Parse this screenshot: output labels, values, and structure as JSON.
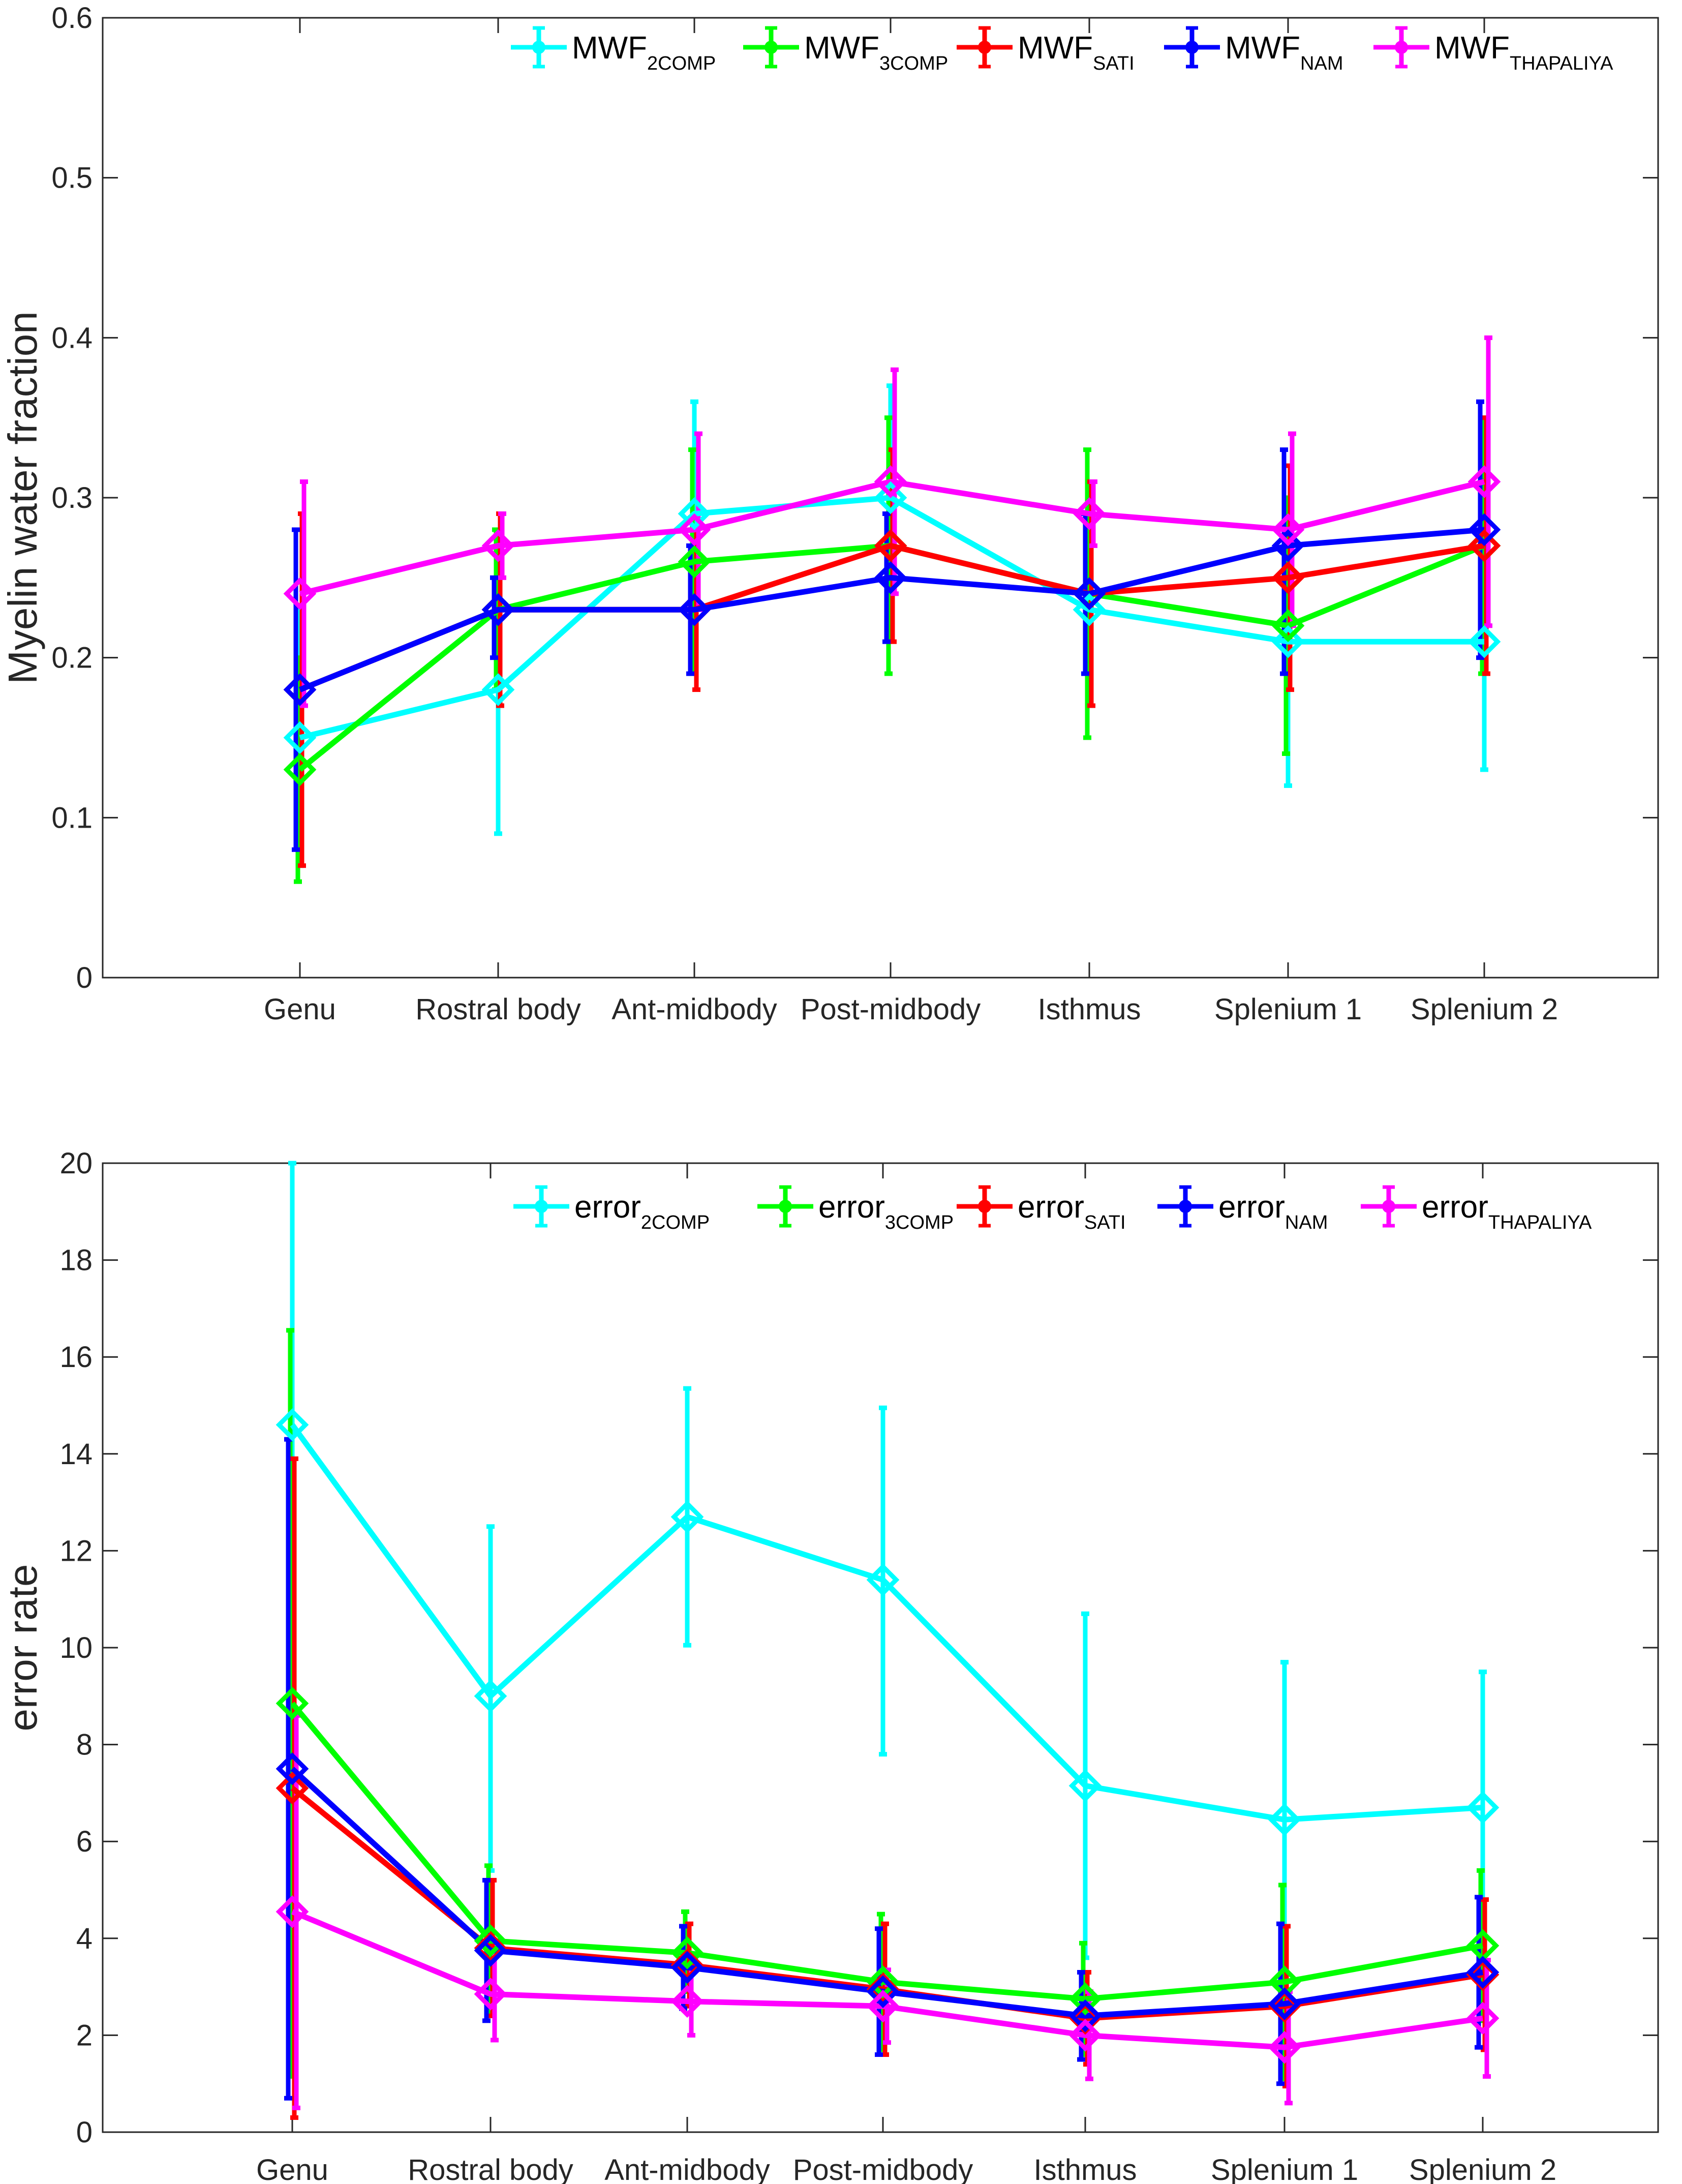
{
  "chart_data": [
    {
      "type": "line",
      "title": "",
      "xlabel": "",
      "ylabel": "Myelin water fraction",
      "ylim": [
        0,
        0.6
      ],
      "yticks": [
        0,
        0.1,
        0.2,
        0.3,
        0.4,
        0.5,
        0.6
      ],
      "ytick_labels": [
        "0",
        "0.1",
        "0.2",
        "0.3",
        "0.4",
        "0.5",
        "0.6"
      ],
      "grid": false,
      "legend_position": "top-right",
      "categories": [
        "Genu",
        "Rostral body",
        "Ant-midbody",
        "Post-midbody",
        "Isthmus",
        "Splenium 1",
        "Splenium 2"
      ],
      "series": [
        {
          "name": "MWF",
          "sub": "2COMP",
          "color": "#00ffff",
          "values": [
            0.15,
            0.18,
            0.29,
            0.3,
            0.23,
            0.21,
            0.21
          ],
          "lower": [
            0.07,
            0.09,
            0.22,
            0.23,
            0.17,
            0.12,
            0.13
          ],
          "upper": [
            0.23,
            0.27,
            0.36,
            0.37,
            0.3,
            0.3,
            0.3
          ]
        },
        {
          "name": "MWF",
          "sub": "3COMP",
          "color": "#00ff00",
          "values": [
            0.13,
            0.23,
            0.26,
            0.27,
            0.24,
            0.22,
            0.27
          ],
          "lower": [
            0.06,
            0.18,
            0.19,
            0.19,
            0.15,
            0.14,
            0.19
          ],
          "upper": [
            0.2,
            0.28,
            0.33,
            0.35,
            0.33,
            0.3,
            0.35
          ]
        },
        {
          "name": "MWF",
          "sub": "SATI",
          "color": "#ff0000",
          "values": [
            0.18,
            0.23,
            0.23,
            0.27,
            0.24,
            0.25,
            0.27
          ],
          "lower": [
            0.07,
            0.17,
            0.18,
            0.21,
            0.17,
            0.18,
            0.19
          ],
          "upper": [
            0.29,
            0.29,
            0.28,
            0.33,
            0.31,
            0.32,
            0.35
          ]
        },
        {
          "name": "MWF",
          "sub": "NAM",
          "color": "#0000ff",
          "values": [
            0.18,
            0.23,
            0.23,
            0.25,
            0.24,
            0.27,
            0.28
          ],
          "lower": [
            0.08,
            0.2,
            0.19,
            0.21,
            0.19,
            0.19,
            0.2
          ],
          "upper": [
            0.28,
            0.25,
            0.27,
            0.29,
            0.29,
            0.33,
            0.36
          ]
        },
        {
          "name": "MWF",
          "sub": "THAPALIYA",
          "color": "#ff00ff",
          "values": [
            0.24,
            0.27,
            0.28,
            0.31,
            0.29,
            0.28,
            0.31
          ],
          "lower": [
            0.17,
            0.25,
            0.23,
            0.24,
            0.27,
            0.22,
            0.22
          ],
          "upper": [
            0.31,
            0.29,
            0.34,
            0.38,
            0.31,
            0.34,
            0.4
          ]
        }
      ]
    },
    {
      "type": "line",
      "title": "",
      "xlabel": "",
      "ylabel": "error rate",
      "ylim": [
        0,
        20
      ],
      "yticks": [
        0,
        2,
        4,
        6,
        8,
        10,
        12,
        14,
        16,
        18,
        20
      ],
      "ytick_labels": [
        "0",
        "2",
        "4",
        "6",
        "8",
        "10",
        "12",
        "14",
        "16",
        "18",
        "20"
      ],
      "grid": false,
      "legend_position": "top-right",
      "categories": [
        "Genu",
        "Rostral body",
        "Ant-midbody",
        "Post-midbody",
        "Isthmus",
        "Splenium 1",
        "Splenium 2"
      ],
      "series": [
        {
          "name": "error",
          "sub": "2COMP",
          "color": "#00ffff",
          "values": [
            14.6,
            9.0,
            12.7,
            11.4,
            7.15,
            6.45,
            6.7
          ],
          "lower": [
            4.0,
            5.4,
            10.05,
            7.8,
            3.6,
            3.2,
            3.95
          ],
          "upper": [
            20.0,
            12.5,
            15.35,
            14.95,
            10.7,
            9.7,
            9.5
          ]
        },
        {
          "name": "error",
          "sub": "3COMP",
          "color": "#00ff00",
          "values": [
            8.85,
            3.95,
            3.7,
            3.1,
            2.75,
            3.1,
            3.85
          ],
          "lower": [
            1.15,
            2.4,
            2.9,
            1.7,
            1.6,
            1.1,
            2.3
          ],
          "upper": [
            16.55,
            5.5,
            4.55,
            4.5,
            3.9,
            5.1,
            5.4
          ]
        },
        {
          "name": "error",
          "sub": "SATI",
          "color": "#ff0000",
          "values": [
            7.1,
            3.8,
            3.45,
            2.95,
            2.35,
            2.6,
            3.25
          ],
          "lower": [
            0.3,
            2.4,
            2.6,
            1.6,
            1.4,
            0.95,
            1.7
          ],
          "upper": [
            13.9,
            5.2,
            4.3,
            4.3,
            3.3,
            4.25,
            4.8
          ]
        },
        {
          "name": "error",
          "sub": "NAM",
          "color": "#0000ff",
          "values": [
            7.5,
            3.75,
            3.4,
            2.9,
            2.4,
            2.65,
            3.3
          ],
          "lower": [
            0.7,
            2.3,
            2.55,
            1.6,
            1.5,
            1.0,
            1.75
          ],
          "upper": [
            14.3,
            5.2,
            4.25,
            4.2,
            3.3,
            4.3,
            4.85
          ]
        },
        {
          "name": "error",
          "sub": "THAPALIYA",
          "color": "#ff00ff",
          "values": [
            4.55,
            2.85,
            2.7,
            2.6,
            2.0,
            1.75,
            2.35
          ],
          "lower": [
            0.5,
            1.9,
            2.0,
            1.85,
            1.1,
            0.6,
            1.15
          ],
          "upper": [
            8.6,
            3.8,
            3.4,
            3.35,
            2.9,
            2.9,
            3.55
          ]
        }
      ]
    }
  ]
}
